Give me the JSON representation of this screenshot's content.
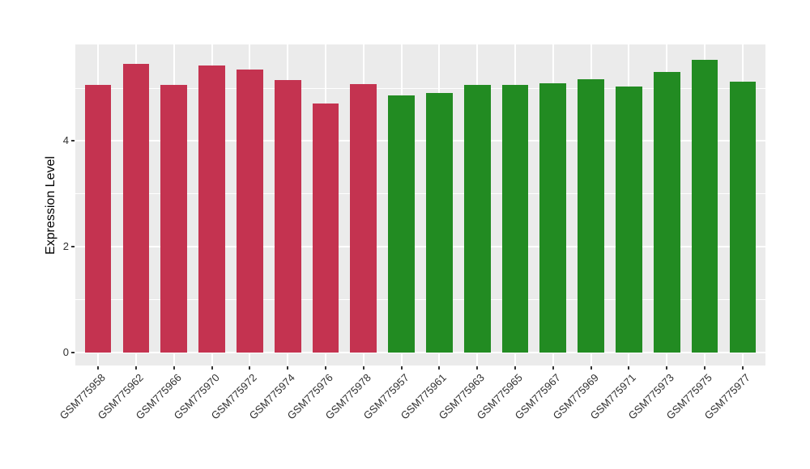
{
  "figure": {
    "background": "#FFFFFF",
    "panel_background": "#EBEBEB",
    "gridline_color": "#FFFFFF",
    "tick_color": "#333333",
    "tick_label_color": "#303030",
    "axis_title_color": "#000000"
  },
  "chart_data": {
    "type": "bar",
    "title": "",
    "xlabel": "",
    "ylabel": "Expression Level",
    "categories": [
      "GSM775958",
      "GSM775962",
      "GSM775966",
      "GSM775970",
      "GSM775972",
      "GSM775974",
      "GSM775976",
      "GSM775978",
      "GSM775957",
      "GSM775961",
      "GSM775963",
      "GSM775965",
      "GSM775967",
      "GSM775969",
      "GSM775971",
      "GSM775973",
      "GSM775975",
      "GSM775977"
    ],
    "values": [
      5.05,
      5.45,
      5.05,
      5.42,
      5.34,
      5.15,
      4.7,
      5.07,
      4.85,
      4.9,
      5.05,
      5.05,
      5.08,
      5.17,
      5.02,
      5.3,
      5.53,
      5.11
    ],
    "bar_colors": [
      "#C43350",
      "#C43350",
      "#C43350",
      "#C43350",
      "#C43350",
      "#C43350",
      "#C43350",
      "#C43350",
      "#228B22",
      "#228B22",
      "#228B22",
      "#228B22",
      "#228B22",
      "#228B22",
      "#228B22",
      "#228B22",
      "#228B22",
      "#228B22"
    ],
    "groups": [
      {
        "name": "red-group",
        "color": "#C43350",
        "count": 8
      },
      {
        "name": "green-group",
        "color": "#228B22",
        "count": 10
      }
    ],
    "yticks": [
      0,
      2,
      4
    ],
    "minor_gridlines": [
      1,
      3,
      5
    ],
    "ylim": [
      -0.25,
      5.82
    ],
    "bar_width_fraction": 0.7,
    "x_tick_angle": 45,
    "grid": true,
    "legend": "none"
  }
}
